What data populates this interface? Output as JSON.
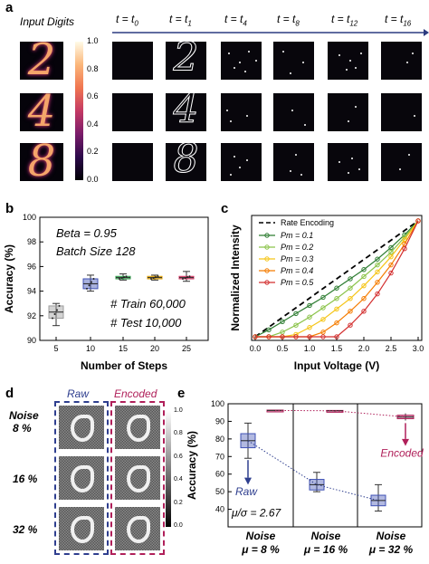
{
  "panel_a": {
    "label": "a",
    "input_title": "Input Digits",
    "time_labels": [
      "t = t0",
      "t = t1",
      "t = t4",
      "t = t8",
      "t = t12",
      "t = t16"
    ],
    "time_subscripts": [
      "0",
      "1",
      "4",
      "8",
      "12",
      "16"
    ],
    "colorbar_ticks": [
      "1.0",
      "0.8",
      "0.6",
      "0.4",
      "0.2",
      "0.0"
    ],
    "digits": [
      "2",
      "4",
      "8"
    ]
  },
  "panel_b": {
    "label": "b",
    "annot_beta": "Beta = 0.95",
    "annot_batch": "Batch Size 128",
    "annot_train": "# Train 60,000",
    "annot_test": "# Test 10,000"
  },
  "panel_c": {
    "label": "c",
    "legend_rate": "Rate Encoding",
    "legend_pm": [
      "Pm = 0.1",
      "Pm = 0.2",
      "Pm = 0.3",
      "Pm = 0.4",
      "Pm = 0.5"
    ]
  },
  "panel_d": {
    "label": "d",
    "noise_header": "Noise",
    "raw_header": "Raw",
    "encoded_header": "Encoded",
    "noise_levels": [
      "8 %",
      "16 %",
      "32 %"
    ],
    "colorbar_ticks": [
      "1.0",
      "0.8",
      "0.6",
      "0.4",
      "0.2",
      "0.0"
    ]
  },
  "panel_e": {
    "label": "e",
    "raw_label": "Raw",
    "encoded_label": "Encoded",
    "ratio": "μ/σ = 2.67",
    "x_noise": "Noise",
    "x_mu": [
      "μ = 8 %",
      "μ = 16 %",
      "μ = 32 %"
    ]
  },
  "colors": {
    "raw": "#2f3f8f",
    "encoded": "#b0205a",
    "pm": [
      "#2e7d32",
      "#8bc34a",
      "#f5c518",
      "#f57c00",
      "#d32f2f"
    ]
  },
  "chart_data": [
    {
      "type": "box",
      "panel": "b",
      "xlabel": "Number of Steps",
      "ylabel": "Accuracy (%)",
      "categories": [
        "5",
        "10",
        "15",
        "20",
        "25"
      ],
      "xticks": [
        "5",
        "10",
        "15",
        "20",
        "25"
      ],
      "yticks": [
        "90",
        "92",
        "94",
        "96",
        "98",
        "100"
      ],
      "ylim": [
        90,
        100
      ],
      "box_colors": [
        "#9e9e9e",
        "#3f51b5",
        "#2e9e4a",
        "#e0a000",
        "#d32f5f"
      ],
      "boxes": [
        {
          "min": 91.2,
          "q1": 91.8,
          "median": 92.3,
          "q3": 92.8,
          "max": 93.0
        },
        {
          "min": 94.0,
          "q1": 94.2,
          "median": 94.6,
          "q3": 95.0,
          "max": 95.3
        },
        {
          "min": 94.9,
          "q1": 95.0,
          "median": 95.1,
          "q3": 95.2,
          "max": 95.4
        },
        {
          "min": 94.9,
          "q1": 95.0,
          "median": 95.1,
          "q3": 95.2,
          "max": 95.3
        },
        {
          "min": 94.8,
          "q1": 95.0,
          "median": 95.1,
          "q3": 95.2,
          "max": 95.6
        }
      ]
    },
    {
      "type": "line",
      "panel": "c",
      "xlabel": "Input Voltage (V)",
      "ylabel": "Normalized Intensity",
      "xticks": [
        "0.0",
        "0.5",
        "1.0",
        "1.5",
        "2.0",
        "2.5",
        "3.0"
      ],
      "xlim": [
        0,
        3
      ],
      "ylim": [
        0,
        1
      ],
      "x": [
        0.0,
        0.25,
        0.5,
        0.75,
        1.0,
        1.25,
        1.5,
        1.75,
        2.0,
        2.25,
        2.5,
        2.75,
        3.0
      ],
      "series": [
        {
          "name": "Rate Encoding",
          "values": [
            0.0,
            0.083,
            0.167,
            0.25,
            0.333,
            0.417,
            0.5,
            0.583,
            0.667,
            0.75,
            0.833,
            0.917,
            1.0
          ]
        },
        {
          "name": "Pm = 0.1",
          "values": [
            0.0,
            0.06,
            0.13,
            0.2,
            0.27,
            0.34,
            0.42,
            0.5,
            0.58,
            0.67,
            0.77,
            0.88,
            1.0
          ]
        },
        {
          "name": "Pm = 0.2",
          "values": [
            0.0,
            0.0,
            0.04,
            0.1,
            0.17,
            0.25,
            0.33,
            0.42,
            0.52,
            0.62,
            0.73,
            0.86,
            1.0
          ]
        },
        {
          "name": "Pm = 0.3",
          "values": [
            0.0,
            0.0,
            0.0,
            0.02,
            0.08,
            0.15,
            0.24,
            0.33,
            0.44,
            0.56,
            0.69,
            0.84,
            1.0
          ]
        },
        {
          "name": "Pm = 0.4",
          "values": [
            0.0,
            0.0,
            0.0,
            0.0,
            0.0,
            0.04,
            0.12,
            0.22,
            0.33,
            0.47,
            0.62,
            0.8,
            1.0
          ]
        },
        {
          "name": "Pm = 0.5",
          "values": [
            0.0,
            0.0,
            0.0,
            0.0,
            0.0,
            0.0,
            0.0,
            0.1,
            0.22,
            0.37,
            0.55,
            0.76,
            1.0
          ]
        }
      ]
    },
    {
      "type": "box",
      "panel": "e",
      "ylabel": "Accuracy (%)",
      "yticks": [
        "40",
        "50",
        "60",
        "70",
        "80",
        "90",
        "100"
      ],
      "ylim": [
        30,
        100
      ],
      "categories": [
        "μ = 8 %",
        "μ = 16 %",
        "μ = 32 %"
      ],
      "raw": [
        {
          "min": 69,
          "q1": 75,
          "median": 79,
          "q3": 83,
          "max": 89
        },
        {
          "min": 50,
          "q1": 51,
          "median": 54,
          "q3": 57,
          "max": 61
        },
        {
          "min": 39,
          "q1": 42,
          "median": 45,
          "q3": 48,
          "max": 54
        }
      ],
      "encoded": [
        {
          "min": 95.8,
          "q1": 96.0,
          "median": 96.2,
          "q3": 96.4,
          "max": 96.6
        },
        {
          "min": 95.5,
          "q1": 95.8,
          "median": 96.0,
          "q3": 96.2,
          "max": 96.4
        },
        {
          "min": 90.5,
          "q1": 91.5,
          "median": 92.5,
          "q3": 93.5,
          "max": 94.5
        }
      ]
    }
  ]
}
